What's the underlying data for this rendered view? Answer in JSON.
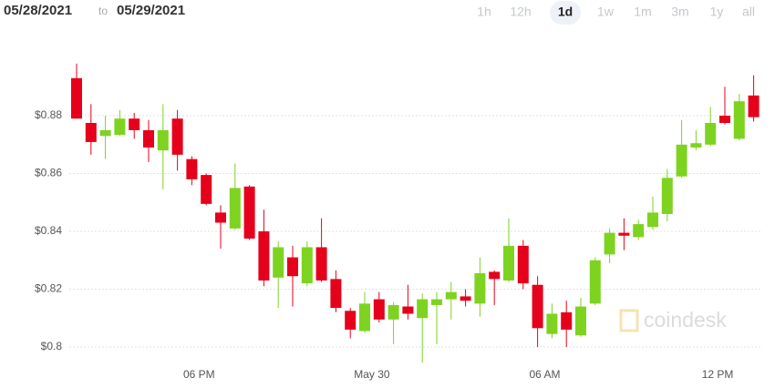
{
  "date_range": {
    "from": "05/28/2021",
    "sep": "to",
    "to": "05/29/2021"
  },
  "ranges": [
    "1h",
    "12h",
    "1d",
    "1w",
    "1m",
    "3m",
    "1y",
    "all"
  ],
  "selected_range_index": 2,
  "watermark": "coindesk",
  "chart_data": {
    "type": "candlestick",
    "categories": [
      null,
      null,
      null,
      null,
      null,
      null,
      null,
      null,
      null,
      "06 PM",
      null,
      null,
      null,
      null,
      null,
      null,
      null,
      null,
      null,
      null,
      null,
      "May 30",
      null,
      null,
      null,
      null,
      null,
      null,
      null,
      null,
      null,
      null,
      null,
      "06 AM",
      null,
      null,
      null,
      null,
      null,
      null,
      null,
      null,
      null,
      null,
      null,
      "12 PM",
      null,
      null
    ],
    "open": [
      0.893,
      0.8775,
      0.873,
      0.8734,
      0.879,
      0.875,
      0.868,
      0.879,
      0.865,
      0.8595,
      0.8465,
      0.841,
      0.8555,
      0.84,
      0.824,
      0.831,
      0.822,
      0.8345,
      0.8235,
      0.8125,
      0.8055,
      0.8165,
      0.8095,
      0.814,
      0.81,
      0.8145,
      0.8165,
      0.8175,
      0.815,
      0.826,
      0.823,
      0.835,
      0.8215,
      0.8045,
      0.812,
      0.804,
      0.815,
      0.832,
      0.8395,
      0.838,
      0.8415,
      0.846,
      0.859,
      0.869,
      0.87,
      0.88,
      0.872,
      0.887
    ],
    "high": [
      0.898,
      0.884,
      0.88,
      0.882,
      0.881,
      0.8785,
      0.884,
      0.882,
      0.866,
      0.86,
      0.849,
      0.8635,
      0.856,
      0.8475,
      0.8365,
      0.835,
      0.8365,
      0.8445,
      0.8265,
      0.8135,
      0.819,
      0.819,
      0.8155,
      0.8215,
      0.8185,
      0.819,
      0.8225,
      0.82,
      0.831,
      0.8265,
      0.8445,
      0.837,
      0.8245,
      0.815,
      0.816,
      0.817,
      0.831,
      0.841,
      0.8445,
      0.844,
      0.852,
      0.8615,
      0.8785,
      0.875,
      0.883,
      0.89,
      0.8875,
      0.894
    ],
    "low": [
      0.879,
      0.8665,
      0.865,
      0.873,
      0.872,
      0.864,
      0.8545,
      0.861,
      0.856,
      0.849,
      0.834,
      0.8405,
      0.837,
      0.821,
      0.8135,
      0.814,
      0.821,
      0.8225,
      0.812,
      0.803,
      0.805,
      0.8085,
      0.801,
      0.8095,
      0.7945,
      0.801,
      0.8095,
      0.814,
      0.8105,
      0.8145,
      0.8225,
      0.82,
      0.8,
      0.803,
      0.8,
      0.8035,
      0.8145,
      0.829,
      0.8335,
      0.837,
      0.8405,
      0.8435,
      0.8585,
      0.868,
      0.8695,
      0.877,
      0.8715,
      0.878
    ],
    "close": [
      0.879,
      0.8709,
      0.875,
      0.879,
      0.875,
      0.869,
      0.875,
      0.8665,
      0.858,
      0.8495,
      0.843,
      0.855,
      0.8375,
      0.823,
      0.8345,
      0.8245,
      0.8345,
      0.823,
      0.8135,
      0.806,
      0.815,
      0.8095,
      0.8145,
      0.8115,
      0.8165,
      0.8165,
      0.819,
      0.816,
      0.8255,
      0.8235,
      0.835,
      0.822,
      0.8065,
      0.8115,
      0.806,
      0.814,
      0.83,
      0.8395,
      0.8385,
      0.8425,
      0.8465,
      0.8585,
      0.87,
      0.8705,
      0.8775,
      0.8775,
      0.885,
      0.8795
    ],
    "up_color": "#7ed321",
    "down_color": "#e5001b",
    "ylim": [
      0.794,
      0.9027
    ],
    "yticks": [
      {
        "value": 0.8,
        "label": "$0.8"
      },
      {
        "value": 0.82,
        "label": "$0.82"
      },
      {
        "value": 0.84,
        "label": "$0.84"
      },
      {
        "value": 0.86,
        "label": "$0.86"
      },
      {
        "value": 0.88,
        "label": "$0.88"
      }
    ],
    "grid": true
  }
}
